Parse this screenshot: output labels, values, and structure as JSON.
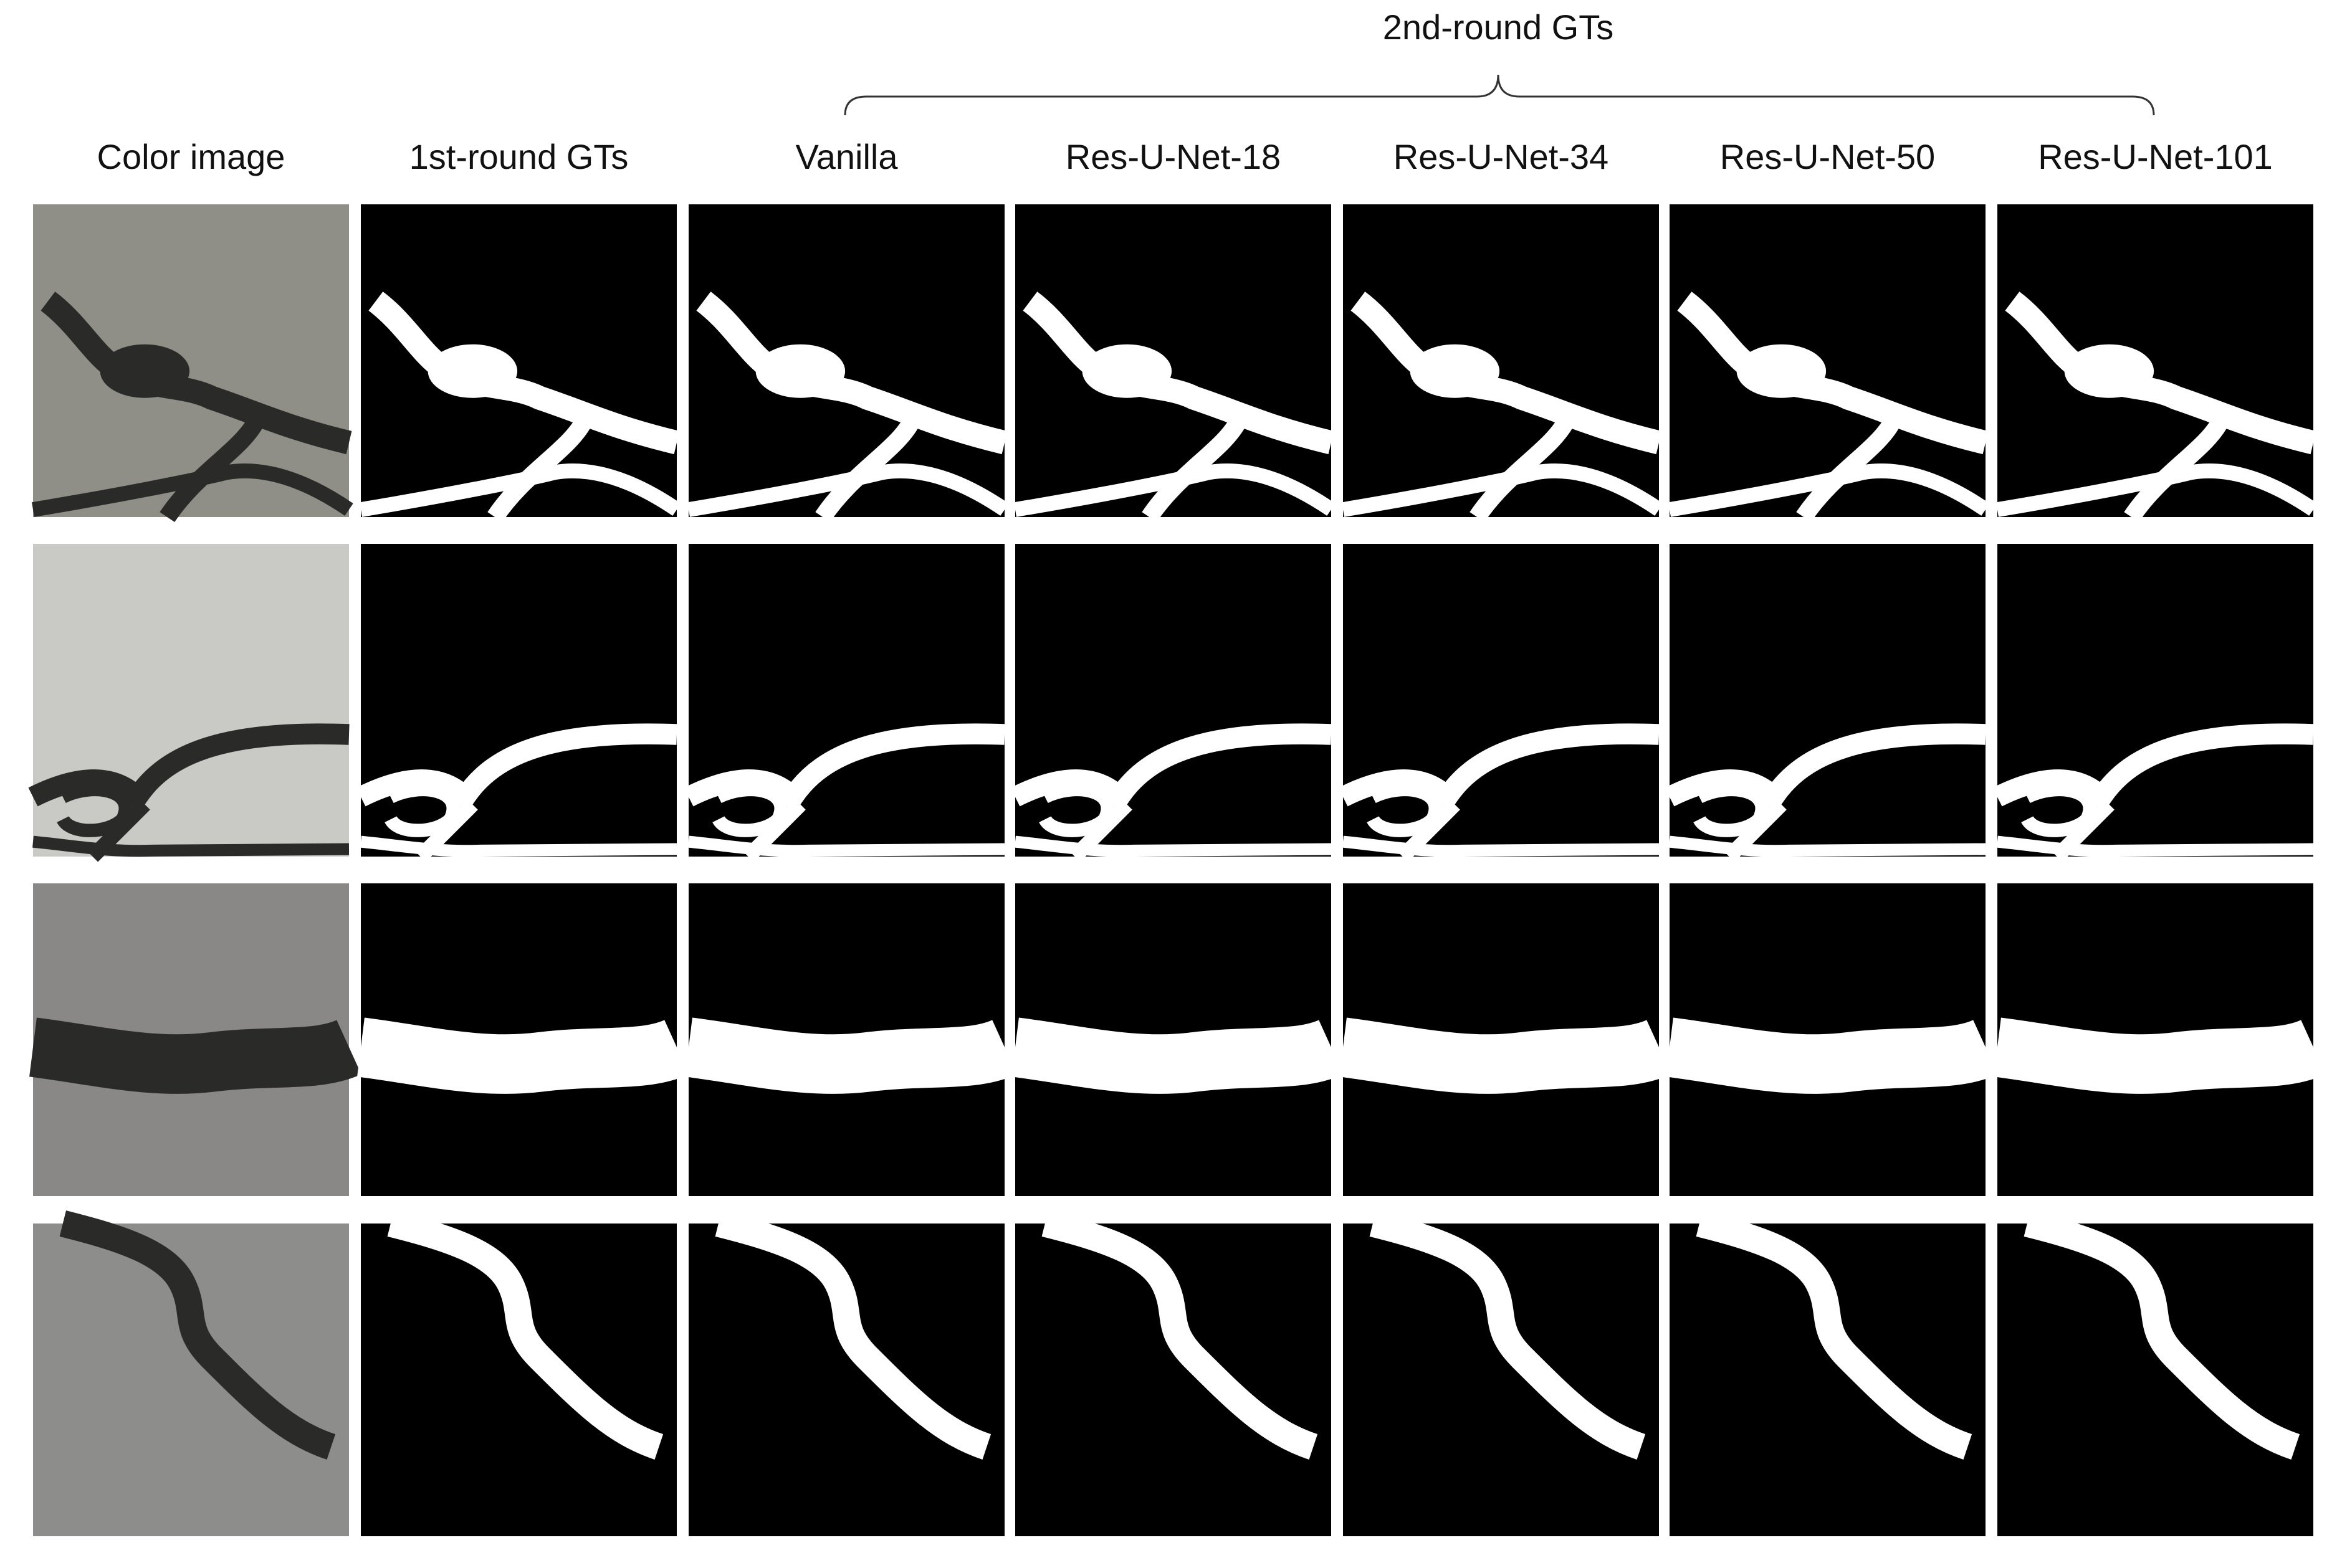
{
  "header": {
    "group_label": "2nd-round GTs"
  },
  "columns": [
    "Color image",
    "1st-round GTs",
    "Vanilla",
    "Res-U-Net-18",
    "Res-U-Net-34",
    "Res-U-Net-50",
    "Res-U-Net-101"
  ]
}
